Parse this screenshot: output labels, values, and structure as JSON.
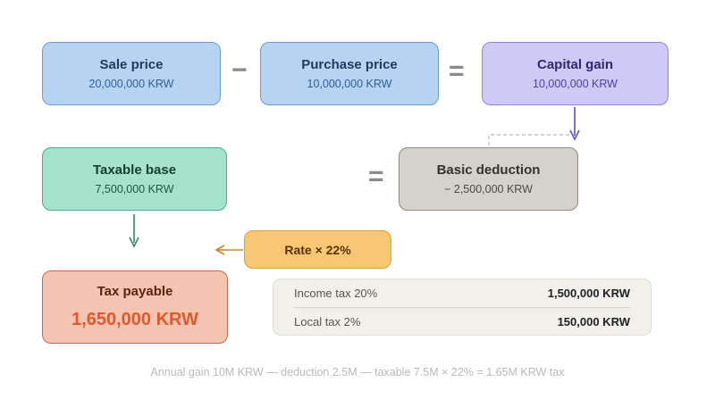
{
  "boxes": {
    "sale": {
      "title": "Sale price",
      "value": "20,000,000 KRW"
    },
    "purchase": {
      "title": "Purchase price",
      "value": "10,000,000 KRW"
    },
    "gain": {
      "title": "Capital gain",
      "value": "10,000,000 KRW"
    },
    "taxable": {
      "title": "Taxable base",
      "value": "7,500,000 KRW"
    },
    "deduction": {
      "title": "Basic deduction",
      "value": "− 2,500,000 KRW"
    },
    "rate": {
      "title": "Rate × 22%"
    },
    "payable": {
      "title": "Tax payable",
      "value": "1,650,000 KRW"
    }
  },
  "operators": {
    "minus": "−",
    "equals": "="
  },
  "breakdown": [
    {
      "label": "Income tax 20%",
      "value": "1,500,000 KRW"
    },
    {
      "label": "Local tax 2%",
      "value": "150,000 KRW"
    }
  ],
  "footer": "Annual gain 10M KRW — deduction 2.5M — taxable 7.5M × 22% = 1.65M KRW tax",
  "colors": {
    "blue_box": "#b7d3f2",
    "purple_box": "#cfcaf5",
    "green_box": "#a5e3cd",
    "gray_box": "#d4d2ca",
    "orange_box": "#f7c774",
    "red_box": "#f5c3b1",
    "accent_result": "#dc5a2c"
  }
}
